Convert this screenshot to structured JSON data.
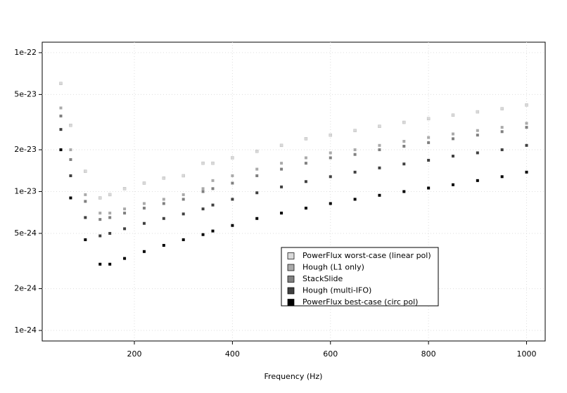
{
  "chart_data": {
    "type": "scatter",
    "x_label": "Frequency (Hz)",
    "log_y": true,
    "xlim": [
      12,
      1038
    ],
    "ylim": [
      8.4e-25,
      1.19e-22
    ],
    "xticks": [
      200,
      400,
      600,
      800,
      1000
    ],
    "yticks": [
      {
        "value": 1e-22,
        "label": "1e-22"
      },
      {
        "value": 5e-23,
        "label": "5e-23"
      },
      {
        "value": 2e-23,
        "label": "2e-23"
      },
      {
        "value": 1e-23,
        "label": "1e-23"
      },
      {
        "value": 5e-24,
        "label": "5e-24"
      },
      {
        "value": 2e-24,
        "label": "2e-24"
      },
      {
        "value": 1e-24,
        "label": "1e-24"
      }
    ],
    "grid": true,
    "legend_position": "bottom-center",
    "x": [
      50,
      70,
      100,
      130,
      150,
      180,
      220,
      260,
      300,
      340,
      360,
      400,
      450,
      500,
      550,
      600,
      650,
      700,
      750,
      800,
      850,
      900,
      950,
      1000
    ],
    "series": [
      {
        "name": "PowerFlux worst-case (linear pol)",
        "color": "#d9d9d9",
        "values": [
          6e-23,
          3e-23,
          1.4e-23,
          9e-24,
          9.5e-24,
          1.05e-23,
          1.15e-23,
          1.25e-23,
          1.3e-23,
          1.6e-23,
          1.6e-23,
          1.75e-23,
          1.95e-23,
          2.15e-23,
          2.4e-23,
          2.55e-23,
          2.75e-23,
          2.95e-23,
          3.15e-23,
          3.35e-23,
          3.55e-23,
          3.75e-23,
          3.95e-23,
          4.2e-23
        ]
      },
      {
        "name": "Hough (L1 only)",
        "color": "#aaaaaa",
        "values": [
          4e-23,
          2e-23,
          9.5e-24,
          7e-24,
          7e-24,
          7.5e-24,
          8.2e-24,
          8.8e-24,
          9.5e-24,
          1.05e-23,
          1.2e-23,
          1.3e-23,
          1.45e-23,
          1.6e-23,
          1.75e-23,
          1.9e-23,
          2e-23,
          2.15e-23,
          2.3e-23,
          2.45e-23,
          2.6e-23,
          2.75e-23,
          2.9e-23,
          3.1e-23
        ]
      },
      {
        "name": "StackSlide",
        "color": "#808080",
        "values": [
          3.5e-23,
          1.7e-23,
          8.5e-24,
          6.3e-24,
          6.5e-24,
          7e-24,
          7.6e-24,
          8.2e-24,
          8.8e-24,
          1e-23,
          1.05e-23,
          1.15e-23,
          1.3e-23,
          1.45e-23,
          1.6e-23,
          1.75e-23,
          1.85e-23,
          2e-23,
          2.12e-23,
          2.25e-23,
          2.4e-23,
          2.55e-23,
          2.7e-23,
          2.9e-23
        ]
      },
      {
        "name": "Hough (multi-IFO)",
        "color": "#404040",
        "values": [
          2.8e-23,
          1.3e-23,
          6.5e-24,
          4.8e-24,
          5e-24,
          5.4e-24,
          5.9e-24,
          6.4e-24,
          6.9e-24,
          7.5e-24,
          8e-24,
          8.8e-24,
          9.8e-24,
          1.08e-23,
          1.18e-23,
          1.28e-23,
          1.38e-23,
          1.48e-23,
          1.58e-23,
          1.68e-23,
          1.8e-23,
          1.9e-23,
          2e-23,
          2.15e-23
        ]
      },
      {
        "name": "PowerFlux best-case (circ pol)",
        "color": "#000000",
        "values": [
          2e-23,
          9e-24,
          4.5e-24,
          3e-24,
          3e-24,
          3.3e-24,
          3.7e-24,
          4.1e-24,
          4.5e-24,
          4.9e-24,
          5.2e-24,
          5.7e-24,
          6.4e-24,
          7e-24,
          7.6e-24,
          8.2e-24,
          8.8e-24,
          9.4e-24,
          1e-23,
          1.06e-23,
          1.12e-23,
          1.2e-23,
          1.28e-23,
          1.38e-23
        ]
      }
    ]
  }
}
